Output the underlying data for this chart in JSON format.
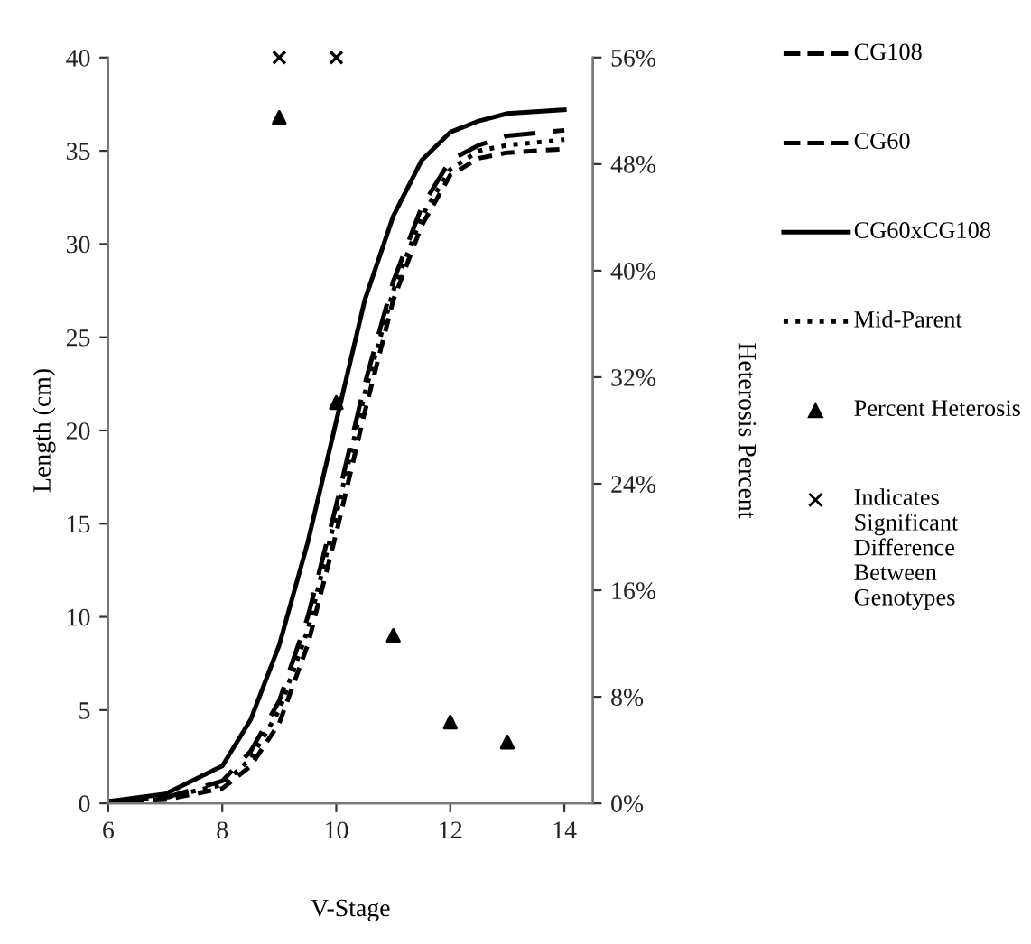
{
  "chart_data": {
    "type": "line",
    "xlabel": "V-Stage",
    "ylabel": "Length (cm)",
    "y2label": "Heterosis Percent",
    "xlim": [
      6,
      14.5
    ],
    "xticks": [
      6,
      8,
      10,
      12,
      14
    ],
    "ylim": [
      0,
      40
    ],
    "yticks": [
      0,
      5,
      10,
      15,
      20,
      25,
      30,
      35,
      40
    ],
    "y2lim": [
      0,
      56
    ],
    "y2ticks": [
      {
        "value": 0,
        "label": "0%"
      },
      {
        "value": 8,
        "label": "8%"
      },
      {
        "value": 16,
        "label": "16%"
      },
      {
        "value": 24,
        "label": "24%"
      },
      {
        "value": 32,
        "label": "32%"
      },
      {
        "value": 40,
        "label": "40%"
      },
      {
        "value": 48,
        "label": "48%"
      },
      {
        "value": 56,
        "label": "56%"
      }
    ],
    "grid": false,
    "legend": "right",
    "series": [
      {
        "name": "CG108",
        "line_style": "dashed",
        "color": "#000000",
        "x": [
          6,
          7,
          8,
          8.5,
          9,
          9.5,
          10,
          10.5,
          11,
          11.5,
          12,
          12.5,
          13,
          14
        ],
        "values": [
          0.1,
          0.3,
          1.2,
          2.8,
          5.5,
          10,
          16,
          22.5,
          28,
          32,
          34.5,
          35.3,
          35.8,
          36.1
        ]
      },
      {
        "name": "CG60",
        "line_style": "dashed",
        "color": "#000000",
        "x": [
          6,
          7,
          8,
          8.5,
          9,
          9.5,
          10,
          10.5,
          11,
          11.5,
          12,
          12.5,
          13,
          14
        ],
        "values": [
          0.1,
          0.2,
          0.8,
          2,
          4.3,
          8.5,
          14.5,
          21,
          27,
          31,
          33.7,
          34.6,
          34.9,
          35.1
        ]
      },
      {
        "name": "CG60xCG108",
        "line_style": "solid",
        "color": "#000000",
        "x": [
          6,
          7,
          8,
          8.5,
          9,
          9.5,
          10,
          10.5,
          11,
          11.5,
          12,
          12.5,
          13,
          14
        ],
        "values": [
          0.1,
          0.5,
          2,
          4.5,
          8.5,
          14,
          20.5,
          27,
          31.5,
          34.5,
          36,
          36.6,
          37,
          37.2
        ]
      },
      {
        "name": "Mid-Parent",
        "line_style": "dotted",
        "color": "#000000",
        "x": [
          6,
          7,
          8,
          8.5,
          9,
          9.5,
          10,
          10.5,
          11,
          11.5,
          12,
          12.5,
          13,
          14
        ],
        "values": [
          0.1,
          0.3,
          1,
          2.4,
          5,
          9.3,
          15.5,
          22,
          27.5,
          31.5,
          34,
          35,
          35.3,
          35.6
        ]
      },
      {
        "name": "Percent Heterosis",
        "type": "scatter",
        "axis": "y2",
        "marker": "triangle",
        "color": "#000000",
        "x": [
          9,
          10,
          11,
          12,
          13
        ],
        "values": [
          51.5,
          30.1,
          12.6,
          6.1,
          4.6
        ]
      },
      {
        "name": "Indicates Significant Difference Between Genotypes",
        "type": "scatter",
        "axis": "y2",
        "marker": "cross",
        "color": "#000000",
        "x": [
          9,
          10
        ],
        "values": [
          56,
          56
        ]
      }
    ]
  }
}
